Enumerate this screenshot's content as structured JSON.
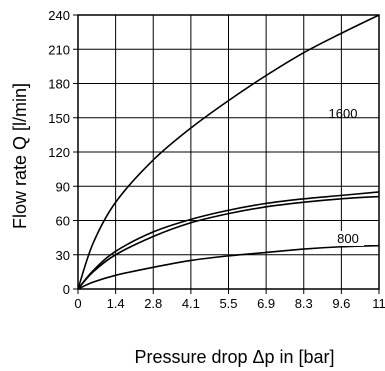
{
  "chart_data": {
    "type": "line",
    "xlabel": "Pressure drop Δp in [bar]",
    "ylabel": "Flow rate Q [l/min]",
    "xlim": [
      0,
      11
    ],
    "ylim": [
      0,
      240
    ],
    "x_ticks": [
      0,
      1.375,
      2.75,
      4.125,
      5.5,
      6.875,
      8.25,
      9.625,
      11
    ],
    "x_tick_labels": [
      "0",
      "1.4",
      "2.8",
      "4.1",
      "5.5",
      "6.9",
      "8.3",
      "9.6",
      "11"
    ],
    "y_ticks": [
      0,
      30,
      60,
      90,
      120,
      150,
      180,
      210,
      240
    ],
    "y_tick_labels": [
      "0",
      "30",
      "60",
      "90",
      "120",
      "150",
      "180",
      "210",
      "240"
    ],
    "grid": true,
    "series": [
      {
        "name": "1600",
        "x": [
          0,
          0.55,
          1.375,
          2.75,
          4.125,
          5.5,
          6.875,
          8.25,
          9.625,
          11
        ],
        "y": [
          0,
          40,
          76,
          113,
          141,
          165,
          187,
          207,
          224,
          240
        ]
      },
      {
        "name": "800",
        "x": [
          0,
          0.55,
          1.375,
          2.75,
          4.125,
          5.5,
          6.875,
          8.25,
          9.625,
          11
        ],
        "y": [
          0,
          16,
          33,
          50,
          61,
          69,
          75,
          79,
          82,
          85
        ]
      },
      {
        "x": [
          0,
          0.55,
          1.375,
          2.75,
          4.125,
          5.5,
          6.875,
          8.25,
          9.625,
          11
        ],
        "y": [
          0,
          15,
          30,
          46,
          58,
          66,
          72,
          76,
          79,
          81
        ]
      },
      {
        "x": [
          0,
          0.55,
          1.375,
          2.75,
          4.125,
          5.5,
          6.875,
          8.25,
          9.625,
          11
        ],
        "y": [
          0,
          6,
          12,
          19,
          25,
          29,
          32,
          35,
          37,
          38
        ]
      }
    ]
  }
}
